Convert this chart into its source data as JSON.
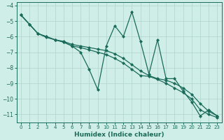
{
  "xlabel": "Humidex (Indice chaleur)",
  "xlim": [
    -0.5,
    23.5
  ],
  "ylim": [
    -11.5,
    -3.8
  ],
  "yticks": [
    -11,
    -10,
    -9,
    -8,
    -7,
    -6,
    -5,
    -4
  ],
  "xticks": [
    0,
    1,
    2,
    3,
    4,
    5,
    6,
    7,
    8,
    9,
    10,
    11,
    12,
    13,
    14,
    15,
    16,
    17,
    18,
    19,
    20,
    21,
    22,
    23
  ],
  "background_color": "#d0eee8",
  "grid_color": "#b0d4cc",
  "line_color": "#1a6b5a",
  "series": [
    {
      "x": [
        0,
        1,
        2,
        3,
        4,
        5,
        6,
        7,
        8,
        9,
        10,
        11,
        12,
        13,
        14,
        15,
        16,
        17,
        18,
        19,
        20,
        21,
        22,
        23
      ],
      "y": [
        -4.6,
        -5.2,
        -5.8,
        -6.0,
        -6.2,
        -6.35,
        -6.6,
        -7.0,
        -8.1,
        -9.4,
        -6.6,
        -5.3,
        -6.0,
        -4.4,
        -6.3,
        -8.4,
        -6.2,
        -8.7,
        -8.7,
        -9.5,
        -10.2,
        -11.1,
        -10.7,
        -11.1
      ]
    },
    {
      "x": [
        0,
        1,
        2,
        3,
        4,
        5,
        6,
        7,
        8,
        9,
        10,
        11,
        12,
        13,
        14,
        15,
        16,
        17,
        18,
        19,
        20,
        21,
        22,
        23
      ],
      "y": [
        -4.6,
        -5.2,
        -5.8,
        -6.0,
        -6.2,
        -6.3,
        -6.5,
        -6.6,
        -6.7,
        -6.8,
        -6.9,
        -7.1,
        -7.4,
        -7.8,
        -8.2,
        -8.5,
        -8.7,
        -8.8,
        -9.0,
        -9.3,
        -9.7,
        -10.3,
        -10.8,
        -11.1
      ]
    },
    {
      "x": [
        0,
        1,
        2,
        3,
        4,
        5,
        6,
        7,
        8,
        9,
        10,
        11,
        12,
        13,
        14,
        15,
        16,
        17,
        18,
        19,
        20,
        21,
        22,
        23
      ],
      "y": [
        -4.6,
        -5.2,
        -5.8,
        -6.05,
        -6.2,
        -6.35,
        -6.6,
        -6.7,
        -6.85,
        -7.0,
        -7.15,
        -7.4,
        -7.7,
        -8.1,
        -8.5,
        -8.55,
        -8.75,
        -9.0,
        -9.3,
        -9.6,
        -10.0,
        -10.7,
        -11.0,
        -11.2
      ]
    }
  ],
  "marker": "D",
  "markersize": 2.0,
  "linewidth": 0.9
}
